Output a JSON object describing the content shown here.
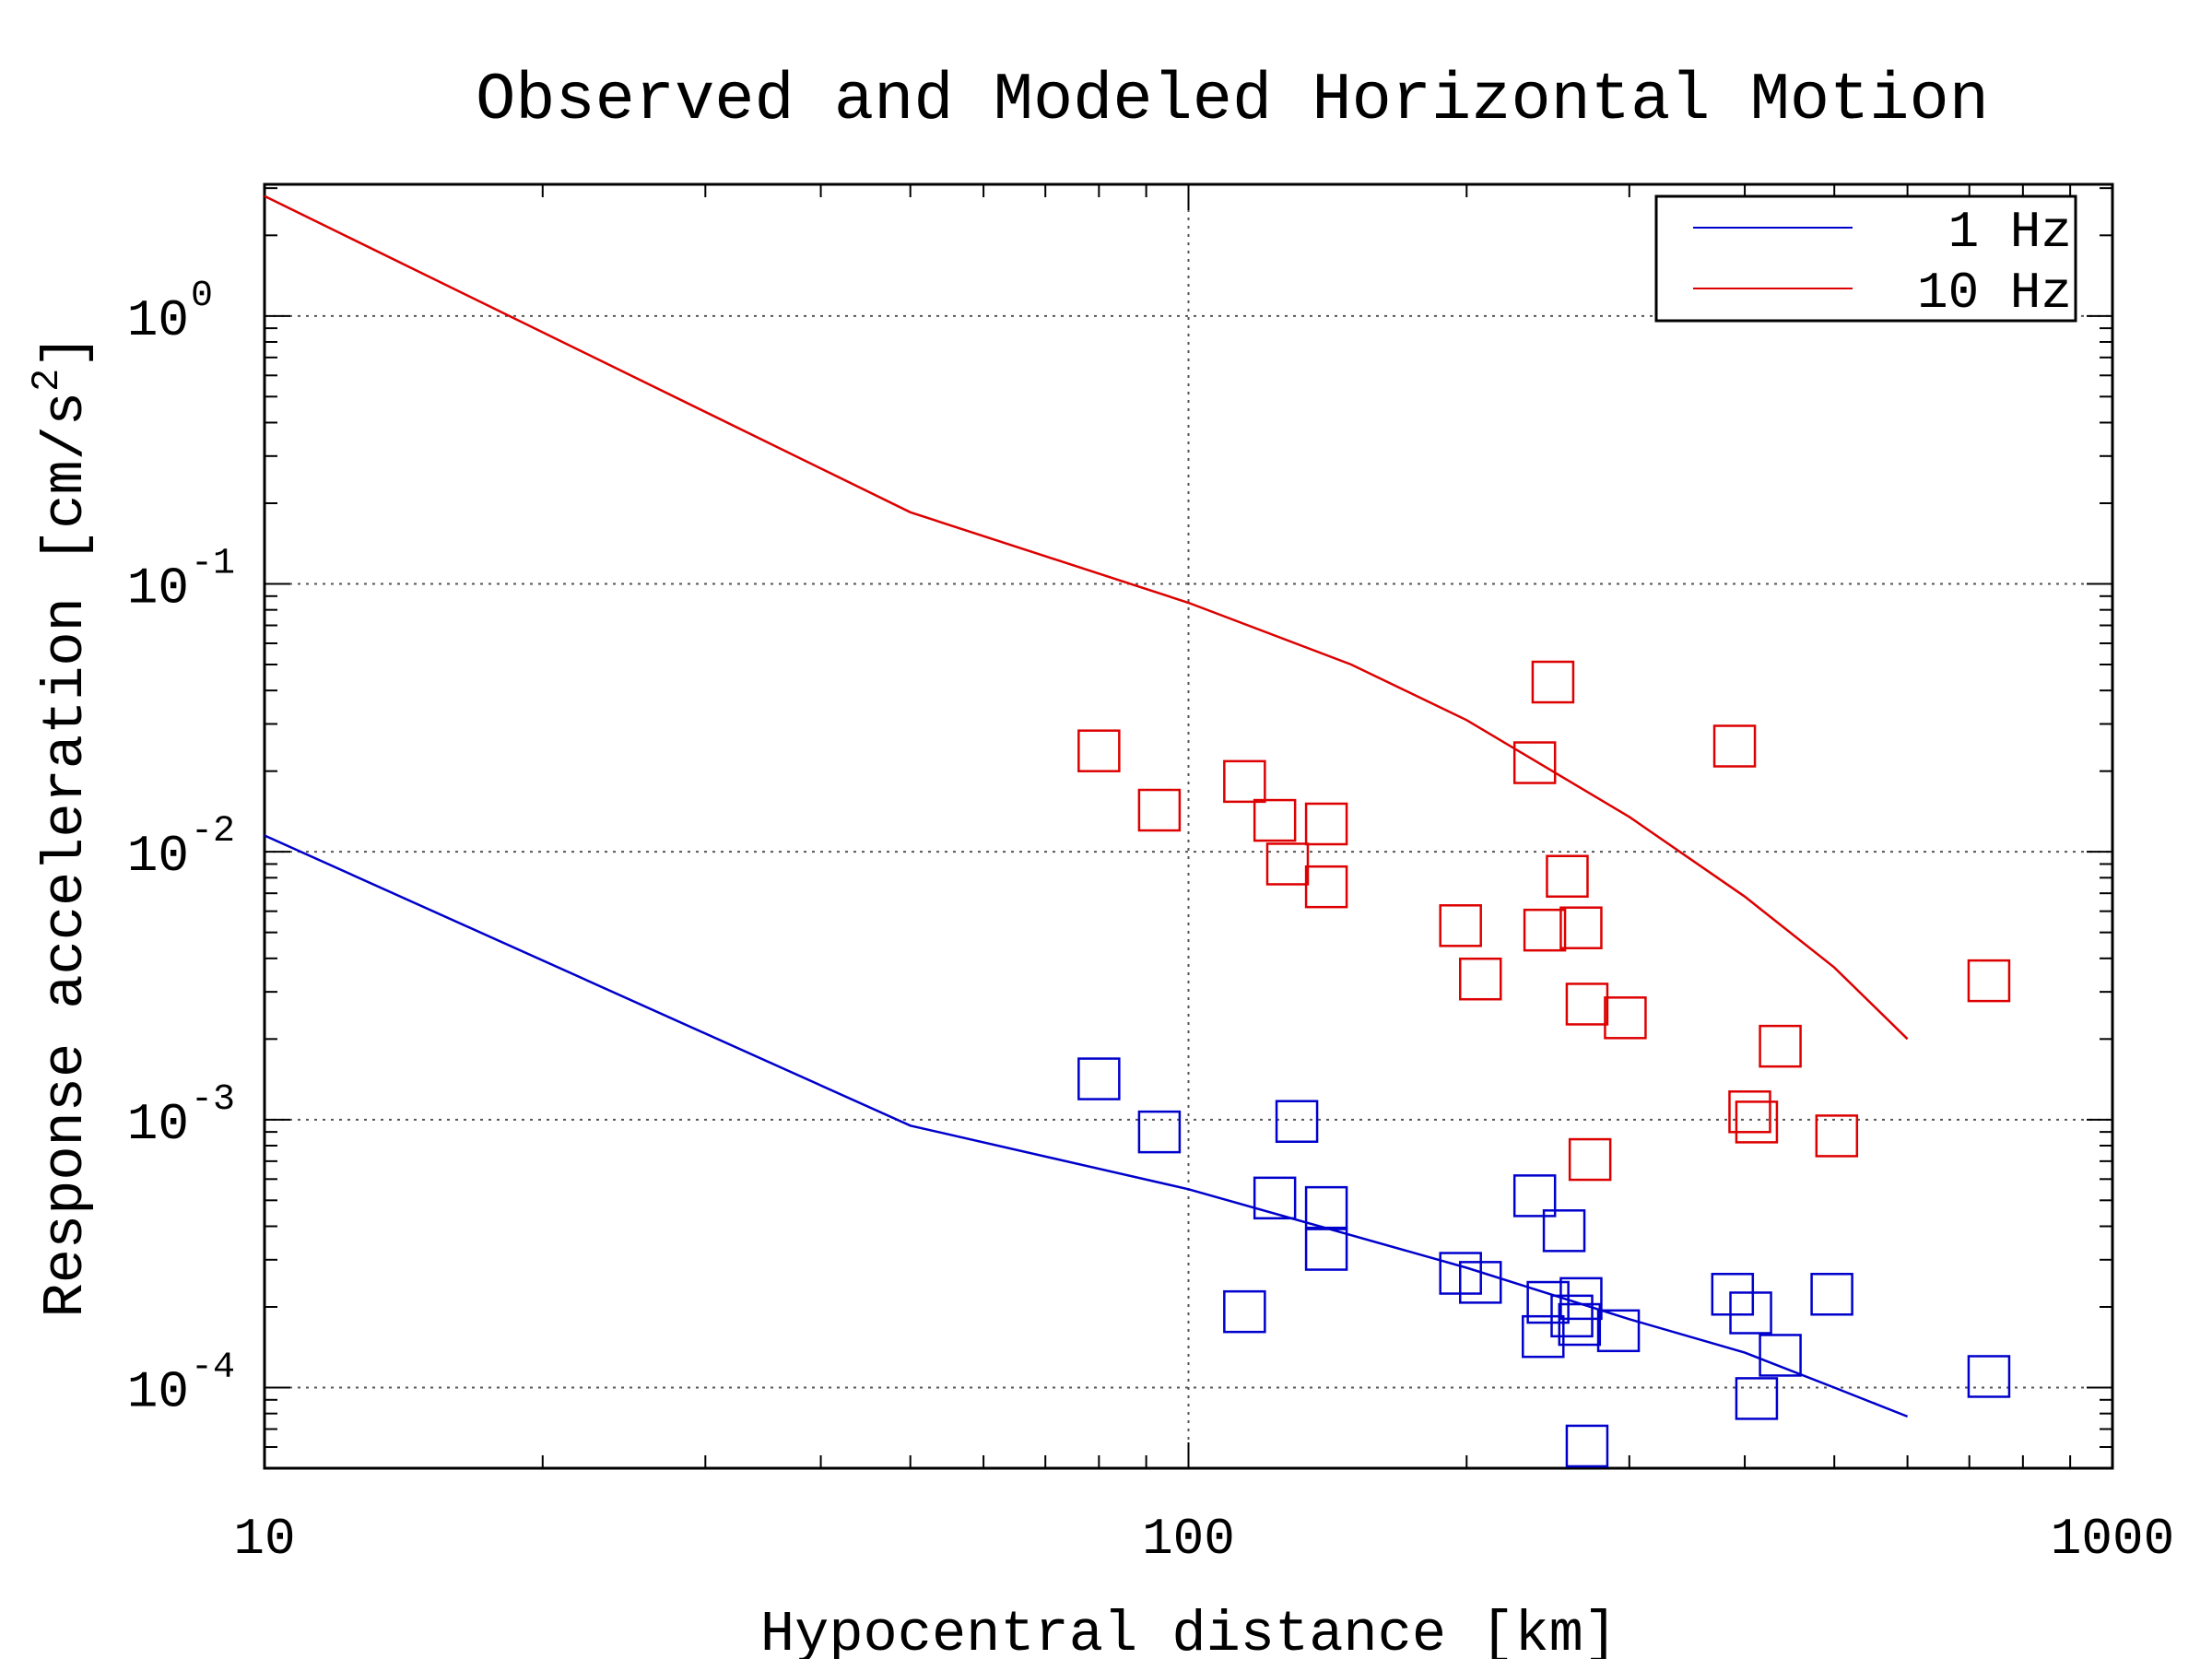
{
  "chart_data": {
    "type": "scatter",
    "title": "Observed and Modeled Horizontal Motion",
    "xlabel": "Hypocentral distance [km]",
    "ylabel_main": "Response acceleration [cm/s",
    "ylabel_sup": "2",
    "ylabel_end": "]",
    "x_scale": "log",
    "y_scale": "log",
    "xlim": [
      10,
      1000
    ],
    "ylim": [
      5e-05,
      3.1
    ],
    "x_ticks": [
      {
        "value": 10,
        "label": "10"
      },
      {
        "value": 100,
        "label": "100"
      },
      {
        "value": 1000,
        "label": "1000"
      }
    ],
    "y_ticks": [
      {
        "value": 1,
        "base": "10",
        "exp": "0"
      },
      {
        "value": 0.1,
        "base": "10",
        "exp": "-1"
      },
      {
        "value": 0.01,
        "base": "10",
        "exp": "-2"
      },
      {
        "value": 0.001,
        "base": "10",
        "exp": "-3"
      },
      {
        "value": 0.0001,
        "base": "10",
        "exp": "-4"
      }
    ],
    "grid": true,
    "legend_position": "top-right",
    "series": [
      {
        "name": "1 Hz",
        "color": "#0000cc",
        "line": [
          [
            10,
            0.0115
          ],
          [
            50,
            0.00095
          ],
          [
            100,
            0.00055
          ],
          [
            200,
            0.00028
          ],
          [
            300,
            0.00018
          ],
          [
            400,
            0.000135
          ],
          [
            500,
            0.0001
          ],
          [
            600,
            7.8e-05
          ]
        ],
        "points": [
          [
            80,
            0.00142
          ],
          [
            93,
            0.0009
          ],
          [
            115,
            0.000192
          ],
          [
            124,
            0.00051
          ],
          [
            131,
            0.000985
          ],
          [
            141,
            0.00047
          ],
          [
            141,
            0.000328
          ],
          [
            197,
            0.000267
          ],
          [
            207,
            0.000247
          ],
          [
            237,
            0.00052
          ],
          [
            242,
            0.000155
          ],
          [
            245,
            0.000208
          ],
          [
            255,
            0.000385
          ],
          [
            260,
            0.000185
          ],
          [
            265,
            0.000172
          ],
          [
            266,
            0.000215
          ],
          [
            270,
            6.05e-05
          ],
          [
            292,
            0.000163
          ],
          [
            388,
            0.000223
          ],
          [
            406,
            0.00019
          ],
          [
            412,
            9.1e-05
          ],
          [
            437,
            0.000132
          ],
          [
            497,
            0.000223
          ],
          [
            735,
            0.00011
          ]
        ]
      },
      {
        "name": "10 Hz",
        "color": "#dd0000",
        "line": [
          [
            10,
            2.8
          ],
          [
            50,
            0.185
          ],
          [
            100,
            0.085
          ],
          [
            150,
            0.05
          ],
          [
            200,
            0.031
          ],
          [
            300,
            0.0135
          ],
          [
            400,
            0.0068
          ],
          [
            500,
            0.0037
          ],
          [
            600,
            0.002
          ]
        ],
        "points": [
          [
            80,
            0.0238
          ],
          [
            93,
            0.0143
          ],
          [
            115,
            0.0183
          ],
          [
            124,
            0.0131
          ],
          [
            128,
            0.009
          ],
          [
            141,
            0.0127
          ],
          [
            141,
            0.0074
          ],
          [
            197,
            0.0053
          ],
          [
            207,
            0.00335
          ],
          [
            237,
            0.0215
          ],
          [
            243,
            0.0051
          ],
          [
            248,
            0.043
          ],
          [
            257,
            0.0081
          ],
          [
            266,
            0.0052
          ],
          [
            270,
            0.0027
          ],
          [
            297,
            0.0024
          ],
          [
            390,
            0.0248
          ],
          [
            405,
            0.00107
          ],
          [
            412,
            0.00098
          ],
          [
            437,
            0.00188
          ],
          [
            503,
            0.00087
          ],
          [
            735,
            0.0033
          ],
          [
            272,
            0.00071
          ]
        ]
      }
    ]
  }
}
